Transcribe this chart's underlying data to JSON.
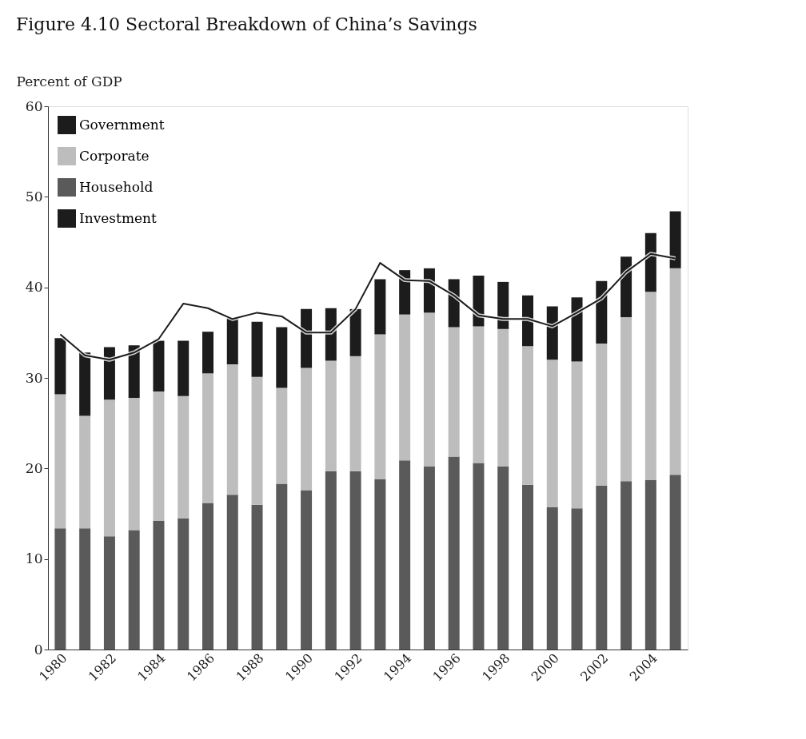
{
  "chart_data": {
    "type": "bar",
    "title": "Figure 4.10 Sectoral Breakdown of China’s Savings",
    "ylabel": "Percent of GDP",
    "categories": [
      "1980",
      null,
      "1982",
      null,
      "1984",
      null,
      "1986",
      null,
      "1988",
      null,
      "1990",
      null,
      "1992",
      null,
      "1994",
      null,
      "1996",
      null,
      "1998",
      null,
      "2000",
      null,
      "2002",
      null,
      "2004",
      null
    ],
    "stacked": true,
    "series": [
      {
        "name": "Household",
        "color": "#5a5a5a",
        "values": [
          13.4,
          13.4,
          12.5,
          13.2,
          14.2,
          14.5,
          16.2,
          17.1,
          16.0,
          18.3,
          17.6,
          19.7,
          19.7,
          18.8,
          20.9,
          20.2,
          21.3,
          20.6,
          20.2,
          18.2,
          15.7,
          15.6,
          18.1,
          18.6,
          18.7,
          19.3
        ]
      },
      {
        "name": "Corporate",
        "color": "#bdbdbd",
        "values": [
          14.8,
          12.4,
          15.1,
          14.6,
          14.3,
          13.5,
          14.3,
          14.4,
          14.1,
          10.6,
          13.5,
          12.2,
          12.7,
          16.0,
          16.1,
          17.0,
          14.3,
          15.1,
          15.2,
          15.3,
          16.3,
          16.2,
          15.7,
          18.1,
          20.8,
          22.8
        ]
      },
      {
        "name": "Government",
        "color": "#1c1c1c",
        "values": [
          6.2,
          7.0,
          5.8,
          5.8,
          5.6,
          6.1,
          4.6,
          5.1,
          6.1,
          6.7,
          6.5,
          5.8,
          5.2,
          6.1,
          4.9,
          4.9,
          5.3,
          5.6,
          5.2,
          5.6,
          5.9,
          7.1,
          6.9,
          6.7,
          6.5,
          6.3
        ]
      },
      {
        "name": "Investment",
        "type": "line",
        "color": "#1c1c1c",
        "values": [
          34.8,
          32.5,
          32.0,
          32.8,
          34.3,
          38.2,
          37.7,
          36.5,
          37.2,
          36.8,
          35.0,
          35.0,
          37.6,
          42.7,
          40.8,
          40.7,
          39.1,
          36.9,
          36.5,
          36.5,
          35.7,
          37.2,
          38.8,
          41.7,
          43.7,
          43.2
        ]
      }
    ],
    "ylim": [
      0,
      60
    ],
    "yticks": [
      0,
      10,
      20,
      30,
      40,
      50,
      60
    ],
    "grid": false,
    "legend": "top left"
  }
}
